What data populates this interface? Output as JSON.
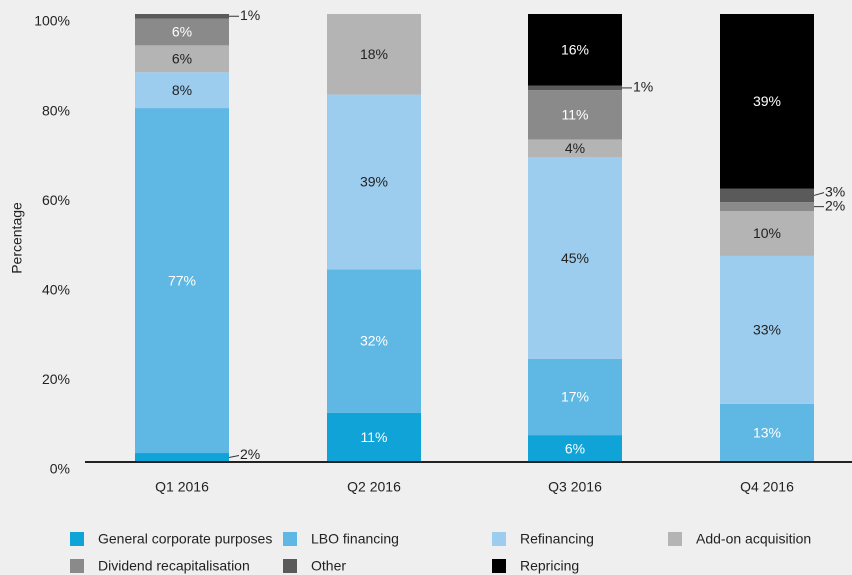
{
  "chart_data": {
    "type": "stacked_bar",
    "y_label": "Percentage",
    "categories": [
      "Q1 2016",
      "Q2 2016",
      "Q3 2016",
      "Q4 2016"
    ],
    "series": [
      {
        "name": "General corporate purposes",
        "color": "#0fa3d8",
        "values": [
          2,
          11,
          6,
          0
        ],
        "value_labels": [
          "2%",
          "11%",
          "6%",
          null
        ]
      },
      {
        "name": "LBO financing",
        "color": "#5fb7e3",
        "values": [
          77,
          32,
          17,
          13
        ],
        "value_labels": [
          "77%",
          "32%",
          "17%",
          "13%"
        ]
      },
      {
        "name": "Refinancing",
        "color": "#9dcdee",
        "values": [
          8,
          39,
          45,
          33
        ],
        "value_labels": [
          "8%",
          "39%",
          "45%",
          "33%"
        ]
      },
      {
        "name": "Add-on acquisition",
        "color": "#b4b4b4",
        "values": [
          6,
          18,
          4,
          10
        ],
        "value_labels": [
          "6%",
          "18%",
          "4%",
          "10%"
        ]
      },
      {
        "name": "Dividend recapitalisation",
        "color": "#8a8a8a",
        "values": [
          6,
          0,
          11,
          2
        ],
        "value_labels": [
          "6%",
          null,
          "11%",
          "2%"
        ]
      },
      {
        "name": "Other",
        "color": "#5a5a5a",
        "values": [
          1,
          0,
          1,
          3
        ],
        "value_labels": [
          "1%",
          null,
          "1%",
          "3%"
        ]
      },
      {
        "name": "Repricing",
        "color": "#000000",
        "values": [
          0,
          0,
          16,
          39
        ],
        "value_labels": [
          null,
          null,
          "16%",
          "39%"
        ]
      }
    ],
    "ylim": [
      0,
      100
    ],
    "yticks": [
      {
        "value": 0,
        "label": "0%"
      },
      {
        "value": 20,
        "label": "20%"
      },
      {
        "value": 40,
        "label": "40%"
      },
      {
        "value": 60,
        "label": "60%"
      },
      {
        "value": 80,
        "label": "80%"
      },
      {
        "value": 100,
        "label": "100%"
      }
    ]
  }
}
